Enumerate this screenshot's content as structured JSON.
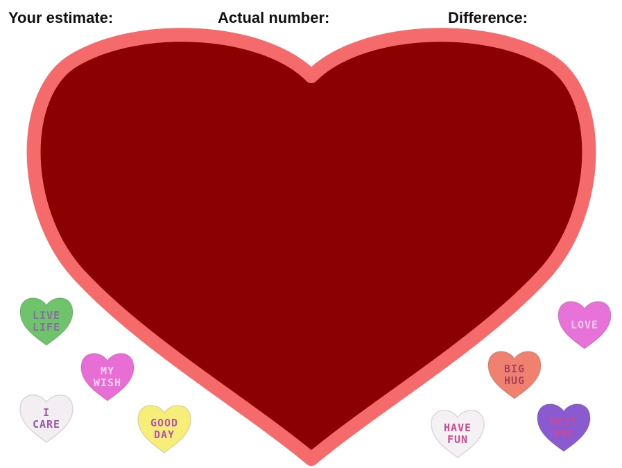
{
  "header": {
    "labels": [
      "Your estimate:",
      "Actual number:",
      "Difference:"
    ]
  },
  "candies": [
    {
      "lines": [
        "LIVE",
        "LIFE"
      ],
      "color": "#6fc36a",
      "text_color": "#8a6aa8"
    },
    {
      "lines": [
        "MY",
        "WISH"
      ],
      "color": "#e86ed6",
      "text_color": "#f7d0f0"
    },
    {
      "lines": [
        "I",
        "CARE"
      ],
      "color": "#f2eef2",
      "text_color": "#9a5aa8"
    },
    {
      "lines": [
        "GOOD",
        "DAY"
      ],
      "color": "#f7ee7a",
      "text_color": "#b05aa0"
    },
    {
      "lines": [
        "LOVE"
      ],
      "color": "#e873d8",
      "text_color": "#f5c8ee"
    },
    {
      "lines": [
        "BIG",
        "HUG"
      ],
      "color": "#f08070",
      "text_color": "#a8405a"
    },
    {
      "lines": [
        "HAVE",
        "FUN"
      ],
      "color": "#f4f0f4",
      "text_color": "#d04a90"
    },
    {
      "lines": [
        "BEST",
        "ONE"
      ],
      "color": "#8a5ad0",
      "text_color": "#c84a9a"
    }
  ]
}
